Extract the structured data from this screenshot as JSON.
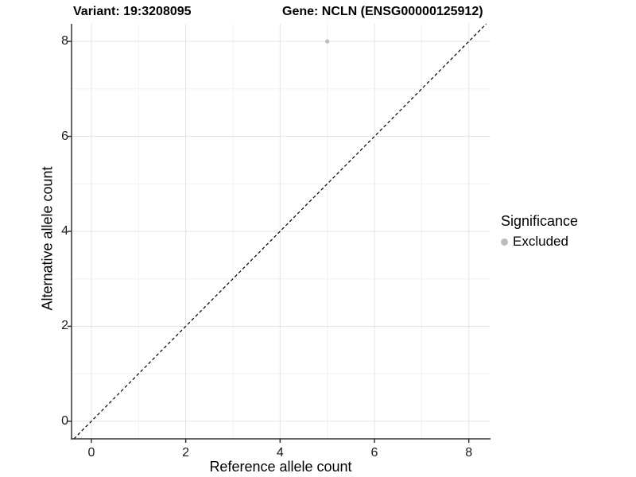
{
  "header": {
    "variant_title": "Variant: 19:3208095",
    "gene_title": "Gene: NCLN (ENSG00000125912)"
  },
  "chart_data": {
    "type": "scatter",
    "xlabel": "Reference allele count",
    "ylabel": "Alternative allele count",
    "xlim": [
      -0.42,
      8.46
    ],
    "ylim": [
      -0.37,
      8.37
    ],
    "xticks": [
      0,
      2,
      4,
      6,
      8
    ],
    "yticks": [
      0,
      2,
      4,
      6,
      8
    ],
    "minor_xticks": [
      1,
      3,
      5,
      7
    ],
    "minor_yticks": [
      1,
      3,
      5,
      7
    ],
    "grid": "major+minor",
    "legend_position": "right",
    "identity_line": {
      "equation": "y = x",
      "style": "dashed",
      "color": "#000000"
    },
    "series": [
      {
        "name": "Excluded",
        "color": "#bdbdbd",
        "points": [
          {
            "x": 5,
            "y": 8
          }
        ]
      }
    ]
  },
  "legend": {
    "title": "Significance",
    "items": [
      {
        "label": "Excluded",
        "color": "#bdbdbd"
      }
    ]
  },
  "colors": {
    "background": "#ffffff",
    "axis_line": "#333333",
    "grid_major": "#e4e4e4",
    "grid_minor": "#f1f1f1",
    "tick_mark": "#333333",
    "tick_label": "#1a1a1a"
  }
}
